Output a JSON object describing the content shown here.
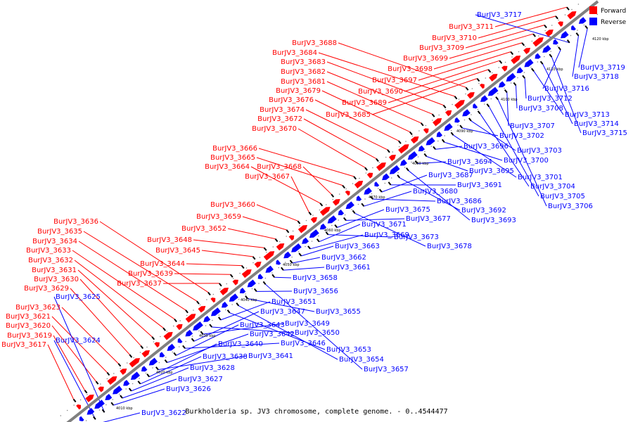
{
  "caption": "Burkholderia sp. JV3 chromosome, complete genome. - 0..4544477",
  "legend": {
    "forward": "Forward",
    "reverse": "Reverse"
  },
  "colors": {
    "forward": "#ff0000",
    "reverse": "#0000ff",
    "backbone": "#808080",
    "pointer": "#000000"
  },
  "ticks": [
    "4010 kbp",
    "4020 kbp",
    "4030 kbp",
    "4040 kbp",
    "4050 kbp",
    "4060 kbp",
    "4070 kbp",
    "4080 kbp",
    "4090 kbp",
    "4100 kbp",
    "4110 kbp",
    "4120 kbp"
  ],
  "forward_labels": [
    "BurJV3_3617",
    "BurJV3_3619",
    "BurJV3_3620",
    "BurJV3_3621",
    "BurJV3_3623",
    "BurJV3_3629",
    "BurJV3_3630",
    "BurJV3_3631",
    "BurJV3_3632",
    "BurJV3_3633",
    "BurJV3_3634",
    "BurJV3_3635",
    "BurJV3_3636",
    "BurJV3_3637",
    "BurJV3_3639",
    "BurJV3_3644",
    "BurJV3_3645",
    "BurJV3_3648",
    "BurJV3_3652",
    "BurJV3_3659",
    "BurJV3_3660",
    "BurJV3_3667",
    "BurJV3_3664",
    "BurJV3_3668",
    "BurJV3_3665",
    "BurJV3_3666",
    "BurJV3_3670",
    "BurJV3_3672",
    "BurJV3_3674",
    "BurJV3_3676",
    "BurJV3_3679",
    "BurJV3_3681",
    "BurJV3_3682",
    "BurJV3_3683",
    "BurJV3_3684",
    "BurJV3_3688",
    "BurJV3_3685",
    "BurJV3_3689",
    "BurJV3_3690",
    "BurJV3_3697",
    "BurJV3_3698",
    "BurJV3_3699",
    "BurJV3_3709",
    "BurJV3_3710",
    "BurJV3_3711"
  ],
  "reverse_labels": [
    "BurJV3_3622",
    "BurJV3_3624",
    "BurJV3_3625",
    "BurJV3_3626",
    "BurJV3_3627",
    "BurJV3_3628",
    "BurJV3_3638",
    "BurJV3_3640",
    "BurJV3_3641",
    "BurJV3_3642",
    "BurJV3_3643",
    "BurJV3_3646",
    "BurJV3_3647",
    "BurJV3_3649",
    "BurJV3_3650",
    "BurJV3_3651",
    "BurJV3_3653",
    "BurJV3_3654",
    "BurJV3_3655",
    "BurJV3_3656",
    "BurJV3_3657",
    "BurJV3_3658",
    "BurJV3_3661",
    "BurJV3_3662",
    "BurJV3_3663",
    "BurJV3_3669",
    "BurJV3_3671",
    "BurJV3_3673",
    "BurJV3_3675",
    "BurJV3_3677",
    "BurJV3_3678",
    "BurJV3_3680",
    "BurJV3_3686",
    "BurJV3_3687",
    "BurJV3_3691",
    "BurJV3_3692",
    "BurJV3_3693",
    "BurJV3_3694",
    "BurJV3_3695",
    "BurJV3_3696",
    "BurJV3_3700",
    "BurJV3_3701",
    "BurJV3_3702",
    "BurJV3_3703",
    "BurJV3_3704",
    "BurJV3_3705",
    "BurJV3_3706",
    "BurJV3_3707",
    "BurJV3_3708",
    "BurJV3_3712",
    "BurJV3_3713",
    "BurJV3_3714",
    "BurJV3_3715",
    "BurJV3_3716",
    "BurJV3_3717",
    "BurJV3_3718",
    "BurJV3_3719"
  ]
}
